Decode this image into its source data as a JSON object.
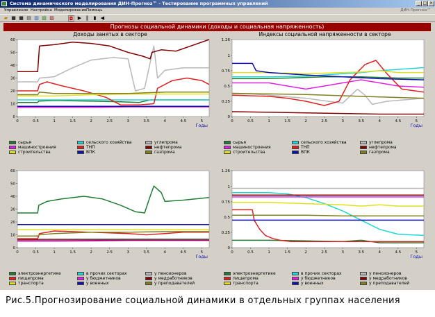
{
  "window": {
    "title": "Система динамического моделирования ДИН-Прогноз™ - Тестирование программных управлений",
    "buttons": [
      "_",
      "□",
      "×"
    ]
  },
  "menu": [
    "Управление",
    "Настройка",
    "Моделирование",
    "Помощь"
  ],
  "brand": "ДИН-Прогноз™",
  "toolbar_icons": [
    "open-folder-icon",
    "save-icon",
    "disk-icon",
    "print-icon",
    "chart-icon",
    "export-icon",
    "model-icon",
    "play-icon",
    "pause-icon",
    "stop-icon",
    "back-icon"
  ],
  "header": "Прогнозы социальной динамики (доходы и социальная напряженность)",
  "caption": "Рис.5.Прогнозирование социальной динамики в отдельных группах населения",
  "chart_data": [
    {
      "type": "line",
      "title": "Доходы занятых в секторе",
      "xlabel": "Годы",
      "xlim": [
        0,
        5.2
      ],
      "ylim": [
        0,
        60
      ],
      "x_ticks": [
        "0",
        "0.5",
        "1",
        "1.5",
        "2",
        "2.5",
        "3",
        "3.5",
        "4",
        "4.5",
        "5"
      ],
      "y_ticks": [
        "0",
        "10",
        "20",
        "30",
        "40",
        "50",
        "60"
      ],
      "series": [
        {
          "name": "сырья",
          "color": "#1e7d32",
          "x": [
            0,
            0.55,
            0.58,
            1,
            2,
            2.8,
            3.3,
            3.6,
            4,
            5.2
          ],
          "y": [
            11,
            11,
            12,
            12.5,
            12,
            11.5,
            11,
            13,
            13,
            13
          ]
        },
        {
          "name": "сельского хозяйства",
          "color": "#22d6d6",
          "x": [
            0,
            1,
            2,
            3,
            4,
            5.2
          ],
          "y": [
            13,
            13,
            13,
            13,
            13,
            13
          ]
        },
        {
          "name": "углепрома",
          "color": "#b8b8b8",
          "x": [
            0,
            0.55,
            0.6,
            1,
            1.5,
            2,
            2.6,
            3,
            3.2,
            3.45,
            3.6,
            3.7,
            3.8,
            4,
            4.5,
            5,
            5.2
          ],
          "y": [
            27,
            27,
            30,
            31,
            38,
            44,
            46,
            45,
            20,
            22,
            42,
            55,
            30,
            36,
            38,
            38,
            38
          ]
        },
        {
          "name": "машиностроения",
          "color": "#e020e0",
          "x": [
            0,
            1,
            2,
            3,
            4,
            5.2
          ],
          "y": [
            7,
            7,
            7,
            7.5,
            7.5,
            7.5
          ]
        },
        {
          "name": "ТНП",
          "color": "#e02020",
          "x": [
            0,
            0.55,
            0.6,
            0.8,
            1.2,
            1.8,
            2.4,
            2.8,
            3.3,
            3.7,
            3.8,
            4.2,
            4.6,
            5,
            5.2
          ],
          "y": [
            20,
            20,
            25,
            27,
            24,
            20,
            15,
            9,
            9,
            10,
            22,
            28,
            30,
            28,
            25
          ]
        },
        {
          "name": "нефтепрома",
          "color": "#800000",
          "x": [
            0,
            0.55,
            0.6,
            1,
            1.5,
            2,
            2.5,
            3,
            3.4,
            3.6,
            3.65,
            3.9,
            4.3,
            4.7,
            5.2
          ],
          "y": [
            35,
            35,
            55,
            56,
            58,
            57,
            55,
            50,
            47,
            45,
            50,
            52,
            51,
            55,
            60
          ]
        },
        {
          "name": "строительства",
          "color": "#e0e020",
          "x": [
            0,
            1,
            2,
            3,
            4,
            5.2
          ],
          "y": [
            16,
            16,
            17,
            17.5,
            17.5,
            17.5
          ]
        },
        {
          "name": "ВПК",
          "color": "#1010b0",
          "x": [
            0,
            1,
            2,
            3,
            4,
            5.2
          ],
          "y": [
            8,
            8,
            8,
            8,
            8,
            8
          ]
        },
        {
          "name": "газпрома",
          "color": "#808020",
          "x": [
            0,
            0.55,
            0.6,
            1,
            2,
            3,
            4,
            5.2
          ],
          "y": [
            17,
            17,
            19,
            18,
            18,
            18,
            19,
            19
          ]
        }
      ]
    },
    {
      "type": "line",
      "title": "Индексы социальной напряженности в секторе",
      "xlabel": "Годы",
      "xlim": [
        0,
        5.2
      ],
      "ylim": [
        0,
        1.26
      ],
      "x_ticks": [
        "0",
        "0.5",
        "1",
        "1.5",
        "2",
        "2.5",
        "3",
        "3.5",
        "4",
        "4.5",
        "5"
      ],
      "y_ticks": [
        "0",
        "0.25",
        "0.5",
        "0.75",
        "1",
        "1.26"
      ],
      "series": [
        {
          "name": "сырья",
          "color": "#1e7d32",
          "x": [
            0,
            0.7,
            1.5,
            2.5,
            3.5,
            4.5,
            5.2
          ],
          "y": [
            0.62,
            0.62,
            0.63,
            0.65,
            0.65,
            0.63,
            0.63
          ]
        },
        {
          "name": "сельского хозяйства",
          "color": "#22d6d6",
          "x": [
            0,
            1,
            2,
            3,
            3.5,
            4,
            5.2
          ],
          "y": [
            0.65,
            0.65,
            0.66,
            0.7,
            0.72,
            0.75,
            0.8
          ]
        },
        {
          "name": "углепрома",
          "color": "#b8b8b8",
          "x": [
            0,
            0.5,
            1,
            2,
            2.6,
            3.0,
            3.4,
            3.6,
            3.8,
            4.2,
            5.2
          ],
          "y": [
            0.37,
            0.37,
            0.35,
            0.3,
            0.25,
            0.22,
            0.45,
            0.35,
            0.2,
            0.25,
            0.3
          ]
        },
        {
          "name": "машиностроения",
          "color": "#e020e0",
          "x": [
            0,
            1,
            1.5,
            2,
            2.5,
            3,
            3.5,
            4,
            4.5,
            5.2
          ],
          "y": [
            0.55,
            0.55,
            0.5,
            0.45,
            0.5,
            0.55,
            0.6,
            0.55,
            0.5,
            0.48
          ]
        },
        {
          "name": "ТНП",
          "color": "#e02020",
          "x": [
            0,
            1,
            1.5,
            2,
            2.5,
            2.9,
            3.2,
            3.6,
            3.9,
            4.2,
            4.6,
            5.2
          ],
          "y": [
            0.35,
            0.33,
            0.3,
            0.25,
            0.18,
            0.25,
            0.6,
            0.85,
            0.92,
            0.7,
            0.45,
            0.4
          ]
        },
        {
          "name": "нефтепрома",
          "color": "#800000",
          "x": [
            0,
            1,
            2,
            3,
            4,
            5.2
          ],
          "y": [
            0.08,
            0.07,
            0.06,
            0.05,
            0.04,
            0.04
          ]
        },
        {
          "name": "строительства",
          "color": "#e0e020",
          "x": [
            0,
            1,
            2,
            3,
            3.5,
            4,
            4.5,
            5.2
          ],
          "y": [
            0.72,
            0.72,
            0.7,
            0.72,
            0.73,
            0.75,
            0.72,
            0.72
          ]
        },
        {
          "name": "ВПК",
          "color": "#1010b0",
          "x": [
            0,
            0.55,
            0.65,
            1,
            2,
            3,
            4,
            5.2
          ],
          "y": [
            0.87,
            0.87,
            0.75,
            0.72,
            0.68,
            0.65,
            0.62,
            0.6
          ]
        },
        {
          "name": "газпрома",
          "color": "#808020",
          "x": [
            0,
            1,
            2,
            3,
            4,
            5.2
          ],
          "y": [
            0.38,
            0.37,
            0.36,
            0.34,
            0.32,
            0.3
          ]
        }
      ]
    },
    {
      "type": "line",
      "title": "",
      "xlabel": "Годы",
      "xlim": [
        0,
        5.2
      ],
      "ylim": [
        0,
        60
      ],
      "x_ticks": [
        "0",
        "0.5",
        "1",
        "1.5",
        "2",
        "2.5",
        "3",
        "3.5",
        "4",
        "4.5",
        "5"
      ],
      "y_ticks": [
        "0",
        "10",
        "20",
        "30",
        "40",
        "50",
        "60"
      ],
      "series": [
        {
          "name": "электроэнергетике",
          "color": "#1e7d32",
          "x": [
            0,
            0.55,
            0.58,
            0.8,
            1.2,
            1.8,
            2.3,
            2.8,
            3.2,
            3.45,
            3.6,
            3.7,
            3.9,
            4.0,
            4.5,
            5.2
          ],
          "y": [
            27,
            27,
            33,
            36,
            38,
            40,
            38,
            33,
            28,
            27,
            40,
            48,
            43,
            36,
            37,
            39
          ]
        },
        {
          "name": "в прочих секторах",
          "color": "#22d6d6",
          "x": [
            0,
            1,
            2,
            3,
            4,
            5.2
          ],
          "y": [
            6,
            6,
            6.2,
            6.5,
            6.5,
            6.8
          ]
        },
        {
          "name": "у пенсионеров",
          "color": "#b8b8b8",
          "x": [
            0,
            1,
            2,
            3,
            4,
            5.2
          ],
          "y": [
            7,
            7,
            7,
            7,
            7,
            7
          ]
        },
        {
          "name": "пищепрома",
          "color": "#e02020",
          "x": [
            0,
            0.55,
            0.6,
            1,
            2,
            3,
            3.5,
            4,
            4.5,
            5.2
          ],
          "y": [
            7,
            7,
            11,
            13,
            12,
            11,
            10,
            11,
            12,
            12
          ]
        },
        {
          "name": "у бюджетников",
          "color": "#e020e0",
          "x": [
            0,
            1,
            2,
            3,
            4,
            5.2
          ],
          "y": [
            5,
            5,
            5.2,
            5.5,
            5.5,
            5.5
          ]
        },
        {
          "name": "у медработников",
          "color": "#800000",
          "x": [
            0,
            1,
            2,
            3,
            4,
            5.2
          ],
          "y": [
            6,
            6,
            6,
            6,
            6,
            6
          ]
        },
        {
          "name": "транспорта",
          "color": "#e0e020",
          "x": [
            0,
            1,
            2,
            3,
            4,
            5.2
          ],
          "y": [
            14,
            14,
            14,
            14,
            14,
            14
          ]
        },
        {
          "name": "у военных",
          "color": "#1010b0",
          "x": [
            0,
            1,
            2,
            3,
            4,
            5.2
          ],
          "y": [
            18,
            18,
            18,
            18,
            18,
            18
          ]
        },
        {
          "name": "у преподавателей",
          "color": "#808020",
          "x": [
            0,
            0.55,
            0.6,
            1,
            2,
            3,
            4,
            5.2
          ],
          "y": [
            9,
            9,
            10,
            11,
            12,
            12,
            12.5,
            12.5
          ]
        }
      ]
    },
    {
      "type": "line",
      "title": "",
      "xlabel": "Годы",
      "xlim": [
        0,
        5.2
      ],
      "ylim": [
        0,
        1.26
      ],
      "x_ticks": [
        "0",
        "0.5",
        "1",
        "1.5",
        "2",
        "2.5",
        "3",
        "3.5",
        "4",
        "4.5",
        "5"
      ],
      "y_ticks": [
        "0",
        "0.25",
        "0.5",
        "0.75",
        "1",
        "1.26"
      ],
      "series": [
        {
          "name": "электроэнергетике",
          "color": "#1e7d32",
          "x": [
            0,
            1,
            2,
            3,
            3.5,
            4,
            5.2
          ],
          "y": [
            0.12,
            0.12,
            0.11,
            0.1,
            0.12,
            0.08,
            0.08
          ]
        },
        {
          "name": "в прочих секторах",
          "color": "#22d6d6",
          "x": [
            0,
            1,
            1.5,
            2,
            2.5,
            3,
            3.5,
            4,
            4.5,
            5.2
          ],
          "y": [
            0.9,
            0.9,
            0.88,
            0.82,
            0.72,
            0.6,
            0.45,
            0.3,
            0.22,
            0.2
          ]
        },
        {
          "name": "у пенсионеров",
          "color": "#b8b8b8",
          "x": [
            0,
            1,
            2,
            3,
            4,
            5.2
          ],
          "y": [
            0.97,
            0.97,
            0.97,
            0.97,
            0.97,
            0.97
          ]
        },
        {
          "name": "пищепрома",
          "color": "#e02020",
          "x": [
            0,
            0.55,
            0.6,
            0.75,
            0.9,
            1.1,
            1.3,
            1.6,
            2,
            2.5,
            3,
            3.5,
            4,
            5.2
          ],
          "y": [
            0.62,
            0.62,
            0.45,
            0.3,
            0.2,
            0.15,
            0.12,
            0.1,
            0.1,
            0.1,
            0.1,
            0.1,
            0.1,
            0.1
          ]
        },
        {
          "name": "у бюджетников",
          "color": "#e020e0",
          "x": [
            0,
            1,
            2,
            3,
            4,
            5.2
          ],
          "y": [
            0.83,
            0.83,
            0.83,
            0.83,
            0.83,
            0.83
          ]
        },
        {
          "name": "у медработников",
          "color": "#800000",
          "x": [
            0,
            1,
            2,
            3,
            4,
            5.2
          ],
          "y": [
            0.86,
            0.86,
            0.86,
            0.86,
            0.86,
            0.86
          ]
        },
        {
          "name": "транспорта",
          "color": "#e0e020",
          "x": [
            0,
            1,
            2,
            3,
            3.5,
            4,
            4.5,
            5.2
          ],
          "y": [
            0.74,
            0.74,
            0.72,
            0.7,
            0.68,
            0.7,
            0.68,
            0.68
          ]
        },
        {
          "name": "у военных",
          "color": "#1010b0",
          "x": [
            0,
            1,
            2,
            3,
            4,
            5.2
          ],
          "y": [
            0.45,
            0.45,
            0.45,
            0.45,
            0.45,
            0.45
          ]
        },
        {
          "name": "у преподавателей",
          "color": "#808020",
          "x": [
            0,
            1,
            2,
            3,
            4,
            5.2
          ],
          "y": [
            0.53,
            0.53,
            0.53,
            0.52,
            0.52,
            0.52
          ]
        }
      ]
    }
  ]
}
